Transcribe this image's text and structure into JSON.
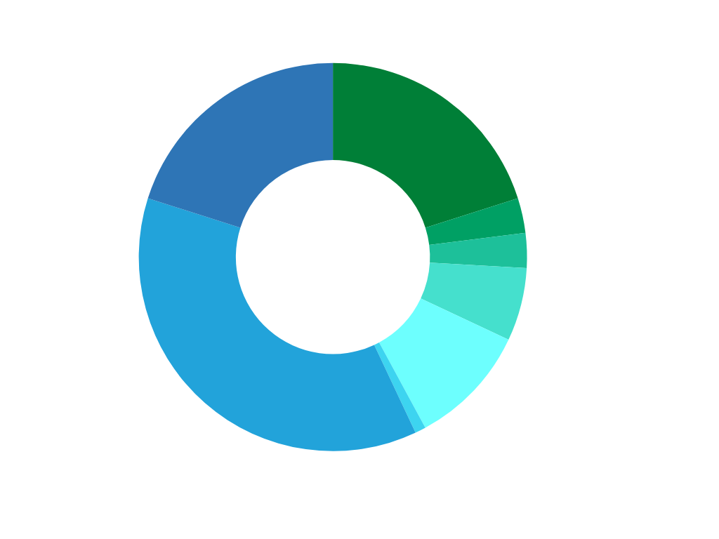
{
  "chart_data": {
    "type": "donut",
    "categories": [
      null,
      null,
      null,
      null,
      null,
      null,
      null,
      null
    ],
    "values": [
      20.1,
      2.9,
      2.9,
      6.1,
      10.1,
      0.9,
      36.9,
      20.1
    ],
    "colors": [
      "#007f37",
      "#00a064",
      "#1dc09a",
      "#45e0cd",
      "#6dfffe",
      "#3dd4f0",
      "#22a3da",
      "#2e75b6"
    ]
  }
}
